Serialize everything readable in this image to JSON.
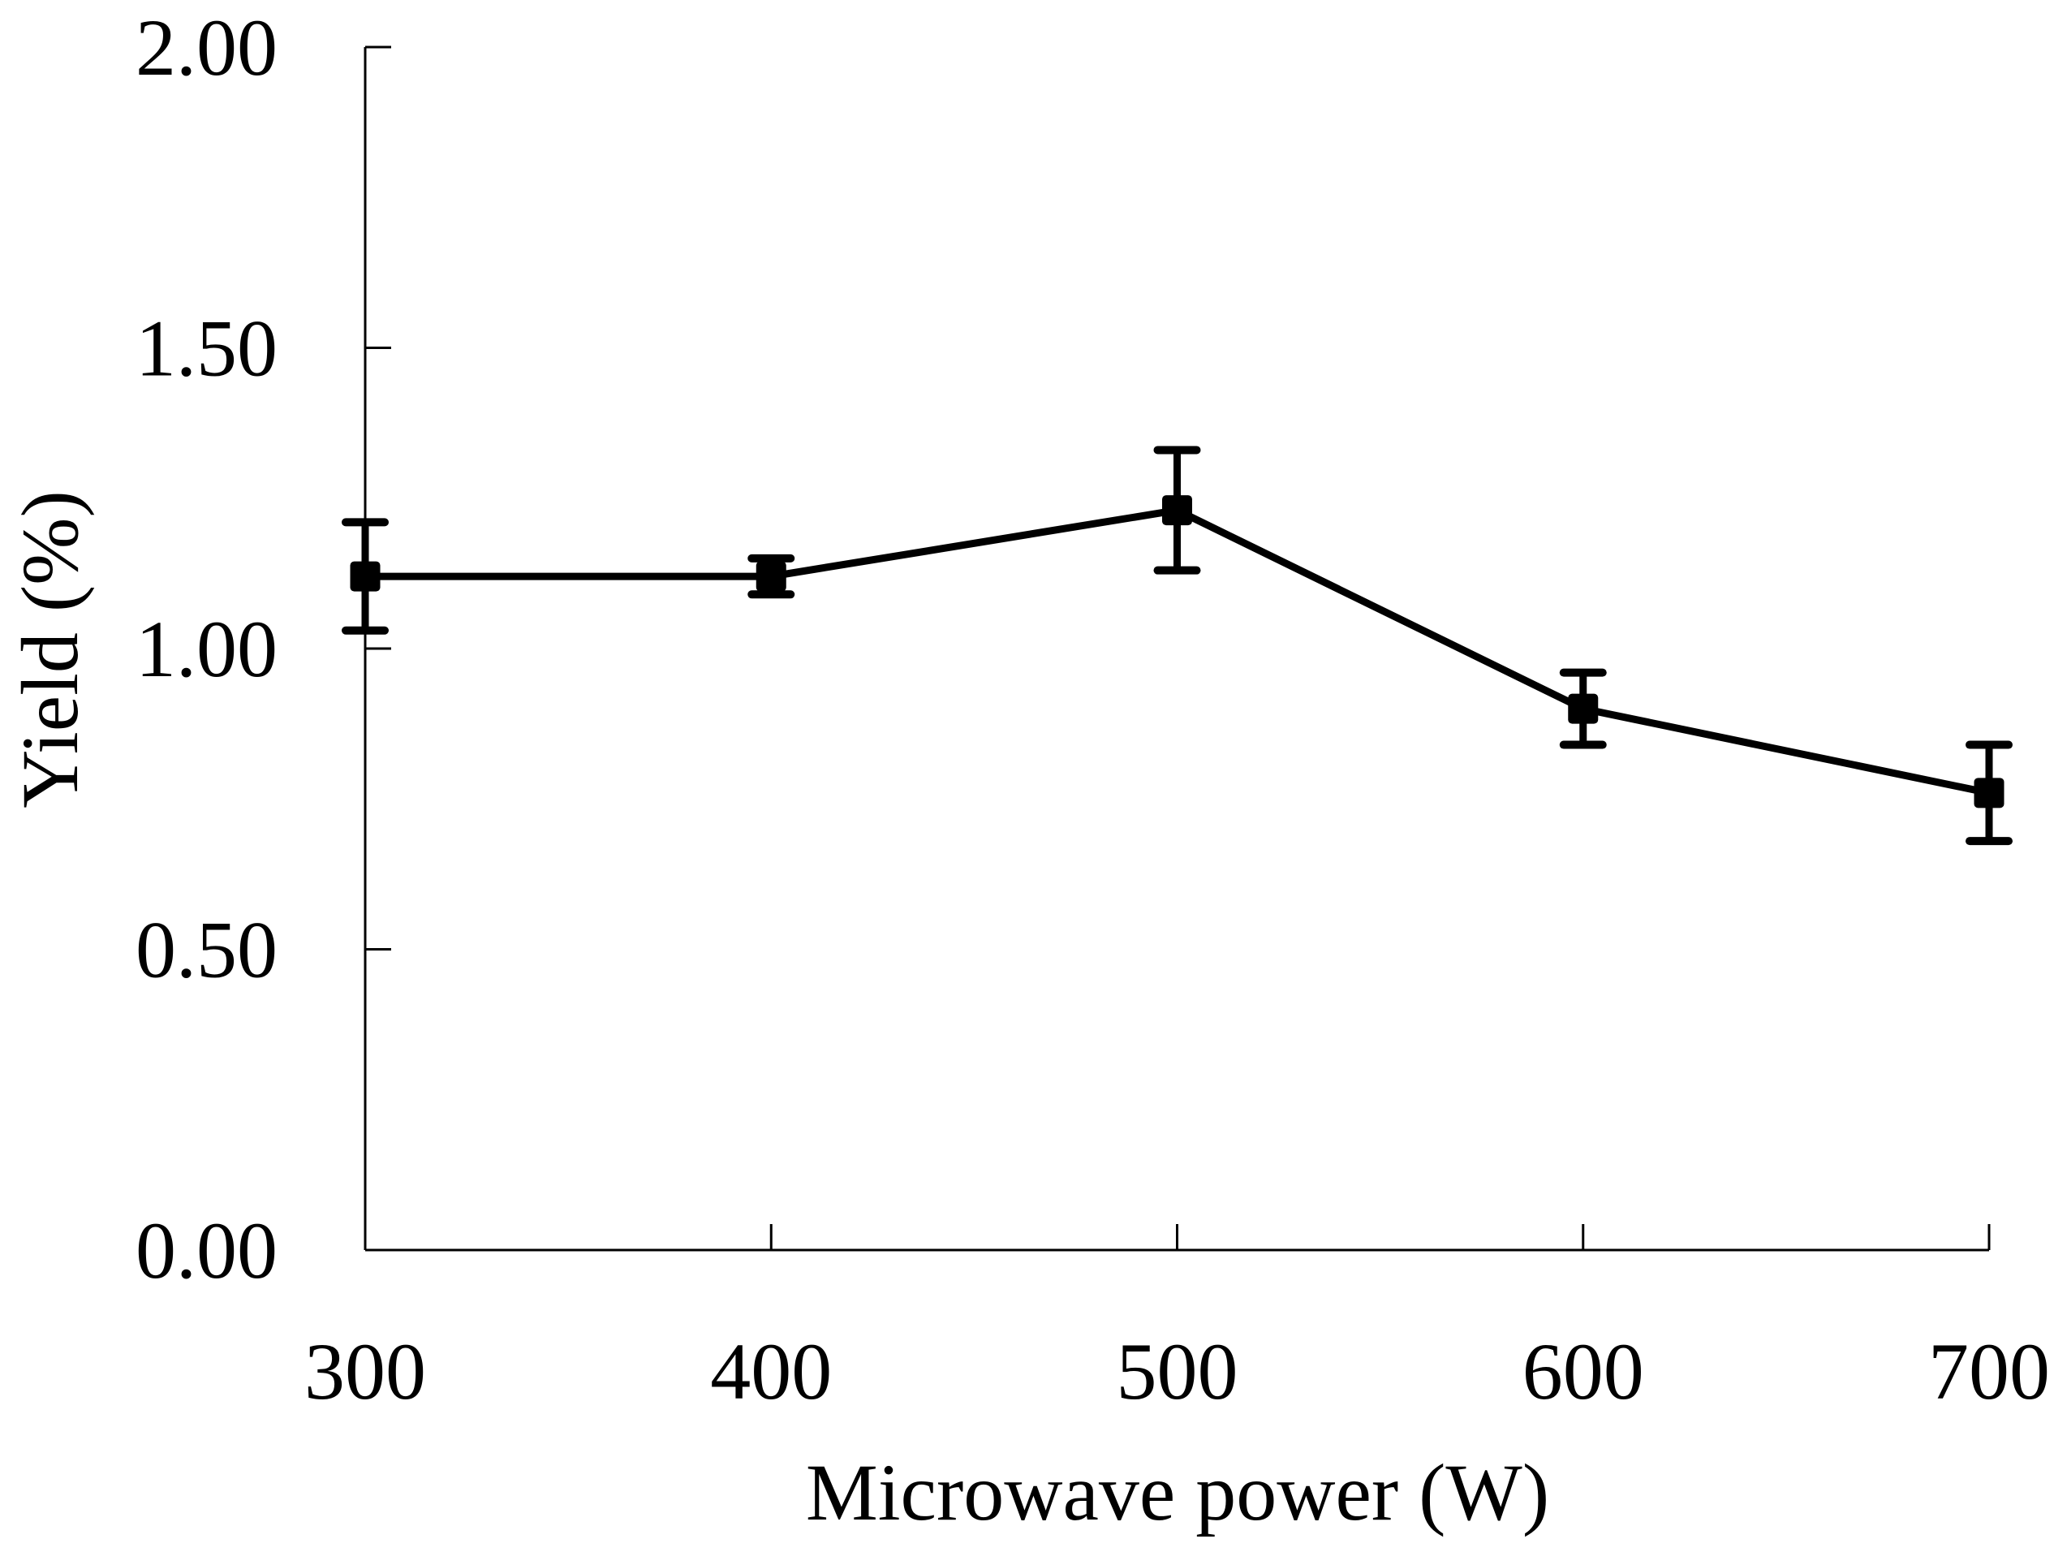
{
  "page": {
    "background": "#ffffff"
  },
  "chart_data": {
    "type": "line",
    "title": "",
    "xlabel": "Microwave power (W)",
    "ylabel": "Yield (%)",
    "x_tick_labels": [
      "300",
      "400",
      "500",
      "600",
      "700"
    ],
    "x_values": [
      300,
      400,
      500,
      600,
      700
    ],
    "series": [
      {
        "name": "yield",
        "values": [
          1.12,
          1.12,
          1.23,
          0.9,
          0.76
        ],
        "error_bars": [
          0.09,
          0.03,
          0.1,
          0.06,
          0.08
        ]
      }
    ],
    "ylim": [
      0.0,
      2.0
    ],
    "y_ticks": [
      {
        "value": 2.0,
        "label": "2.00"
      },
      {
        "value": 1.5,
        "label": "1.50"
      },
      {
        "value": 1.0,
        "label": "1.00"
      },
      {
        "value": 0.5,
        "label": "0.50"
      },
      {
        "value": 0.0,
        "label": "0.00"
      }
    ],
    "grid": "off",
    "legend": "none",
    "marker": "filled-square",
    "colors": {
      "line": "#000000",
      "marker": "#000000",
      "error_bar": "#000000",
      "axis": "#000000",
      "text": "#000000",
      "background": "#ffffff"
    }
  }
}
